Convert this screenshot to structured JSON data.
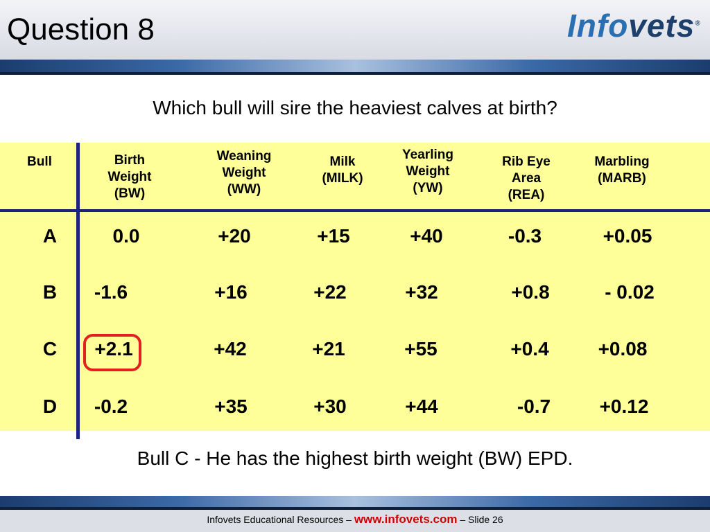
{
  "slide": {
    "title": "Question 8",
    "logo": {
      "part1": "Info",
      "part2": "vets",
      "reg": "®"
    },
    "question": "Which bull will sire the heaviest calves at birth?",
    "answer": "Bull C - He has the highest birth weight (BW) EPD."
  },
  "table": {
    "headers": [
      [
        "Bull"
      ],
      [
        "Birth",
        "Weight",
        "(BW)"
      ],
      [
        "Weaning",
        "Weight",
        "(WW)"
      ],
      [
        "Milk",
        "(MILK)"
      ],
      [
        "Yearling",
        "Weight",
        "(YW)"
      ],
      [
        "Rib Eye",
        "Area",
        "(REA)"
      ],
      [
        "Marbling",
        "(MARB)"
      ]
    ],
    "rows": [
      [
        "A",
        "0.0",
        "+20",
        "+15",
        "+40",
        "-0.3",
        "+0.05"
      ],
      [
        "B",
        "-1.6",
        "+16",
        "+22",
        "+32",
        "+0.8",
        "- 0.02"
      ],
      [
        "C",
        "+2.1",
        "+42",
        "+21",
        "+55",
        "+0.4",
        "+0.08"
      ],
      [
        "D",
        "-0.2",
        "+35",
        "+30",
        "+44",
        "-0.7",
        "+0.12"
      ]
    ],
    "highlighted_cell": "C: +2.1",
    "highlight_color": "#e32020",
    "panel_color": "#ffff99",
    "rule_color": "#1a237e"
  },
  "footer": {
    "prefix": "Infovets Educational Resources – ",
    "url": "www.infovets.com",
    "suffix": " – Slide 26"
  }
}
